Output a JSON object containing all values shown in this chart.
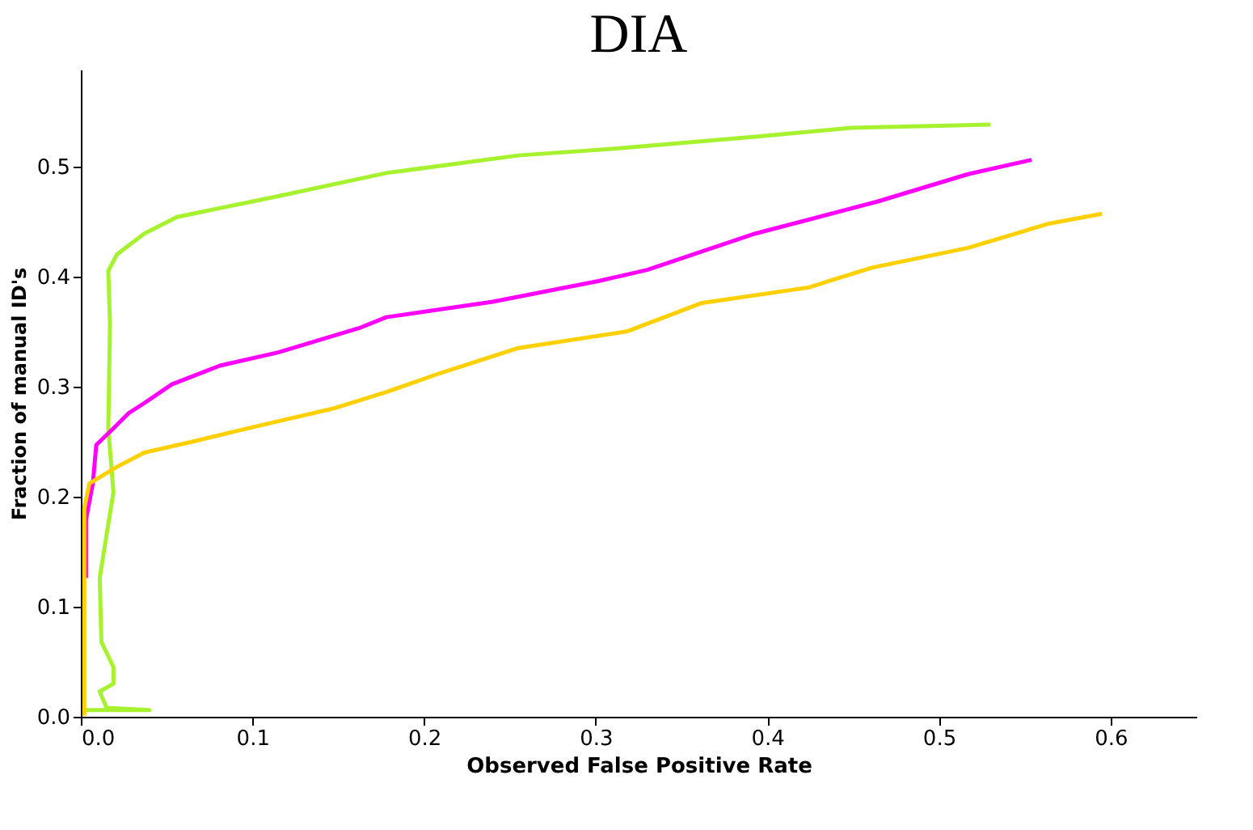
{
  "chart_data": {
    "type": "line",
    "title": "DIA",
    "xlabel": "Observed False Positive Rate",
    "ylabel": "Fraction of manual ID's",
    "xlim": [
      0,
      0.65
    ],
    "ylim": [
      0,
      0.588
    ],
    "xticks": [
      {
        "value": 0,
        "label": "0.0"
      },
      {
        "value": 0.1,
        "label": "0.1"
      },
      {
        "value": 0.2,
        "label": "0.2"
      },
      {
        "value": 0.3,
        "label": "0.3"
      },
      {
        "value": 0.4,
        "label": "0.4"
      },
      {
        "value": 0.5,
        "label": "0.5"
      },
      {
        "value": 0.6,
        "label": "0.6"
      }
    ],
    "yticks": [
      {
        "value": 0,
        "label": "0.0"
      },
      {
        "value": 0.1,
        "label": "0.1"
      },
      {
        "value": 0.2,
        "label": "0.2"
      },
      {
        "value": 0.3,
        "label": "0.3"
      },
      {
        "value": 0.4,
        "label": "0.4"
      },
      {
        "value": 0.5,
        "label": "0.5"
      }
    ],
    "grid": false,
    "legend": false,
    "marker": "none",
    "line_style": "solid",
    "series": [
      {
        "color": "#a6f22e",
        "x": [
          0.002,
          0.04,
          0.015,
          0.011,
          0.019,
          0.019,
          0.012,
          0.011,
          0.016,
          0.019,
          0.016,
          0.017,
          0.016,
          0.021,
          0.037,
          0.056,
          0.115,
          0.178,
          0.255,
          0.318,
          0.393,
          0.449,
          0.53
        ],
        "values": [
          0.006,
          0.006,
          0.008,
          0.023,
          0.03,
          0.045,
          0.068,
          0.126,
          0.175,
          0.204,
          0.262,
          0.357,
          0.405,
          0.42,
          0.439,
          0.454,
          0.473,
          0.494,
          0.51,
          0.517,
          0.527,
          0.535,
          0.538
        ]
      },
      {
        "color": "#ff00ff",
        "x": [
          0.003,
          0.003,
          0.007,
          0.009,
          0.019,
          0.028,
          0.037,
          0.053,
          0.081,
          0.115,
          0.162,
          0.178,
          0.24,
          0.302,
          0.33,
          0.393,
          0.464,
          0.517,
          0.554
        ],
        "values": [
          0.126,
          0.179,
          0.212,
          0.247,
          0.262,
          0.276,
          0.285,
          0.302,
          0.319,
          0.331,
          0.353,
          0.363,
          0.377,
          0.396,
          0.406,
          0.439,
          0.468,
          0.493,
          0.506
        ]
      },
      {
        "color": "#ffd000",
        "x": [
          0.002,
          0.002,
          0.005,
          0.021,
          0.037,
          0.068,
          0.1,
          0.147,
          0.178,
          0.209,
          0.255,
          0.318,
          0.362,
          0.424,
          0.461,
          0.517,
          0.564,
          0.595
        ],
        "values": [
          0.001,
          0.189,
          0.212,
          0.227,
          0.24,
          0.251,
          0.263,
          0.28,
          0.295,
          0.312,
          0.335,
          0.35,
          0.376,
          0.39,
          0.408,
          0.426,
          0.448,
          0.457
        ]
      }
    ]
  }
}
